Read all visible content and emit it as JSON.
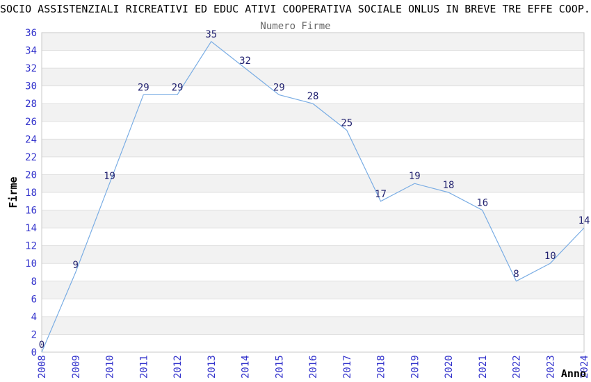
{
  "chart_data": {
    "type": "line",
    "title": "SOCIO ASSISTENZIALI RICREATIVI ED EDUC ATIVI COOPERATIVA SOCIALE ONLUS IN BREVE TRE EFFE COOP.",
    "subtitle": "Numero Firme",
    "xlabel": "Anno",
    "ylabel": "Firme",
    "x": [
      "2008",
      "2009",
      "2010",
      "2011",
      "2012",
      "2013",
      "2014",
      "2015",
      "2016",
      "2017",
      "2018",
      "2019",
      "2020",
      "2021",
      "2022",
      "2023",
      "2024"
    ],
    "series": [
      {
        "name": "Numero Firme",
        "values": [
          0,
          9,
          19,
          29,
          29,
          35,
          32,
          29,
          28,
          25,
          17,
          19,
          18,
          16,
          8,
          10,
          14
        ]
      }
    ],
    "point_labels": [
      0,
      9,
      19,
      29,
      29,
      35,
      32,
      29,
      28,
      25,
      17,
      19,
      18,
      16,
      8,
      10,
      14
    ],
    "ylim": [
      0,
      36
    ],
    "ytick_step": 2,
    "grid": "horizontal-gridlines-with-alternating-bands",
    "legend": "none",
    "x_tick_rotation": -90,
    "colors": {
      "title": "#000000",
      "subtitle": "#666666",
      "axis_title": "#000000",
      "tick_label": "#3333cc",
      "value_label": "#222270",
      "line": "#7aade4",
      "band": "#f2f2f2",
      "gridline": "#e0e0e0",
      "plot_border": "#c8c8c8",
      "background": "#ffffff"
    }
  }
}
